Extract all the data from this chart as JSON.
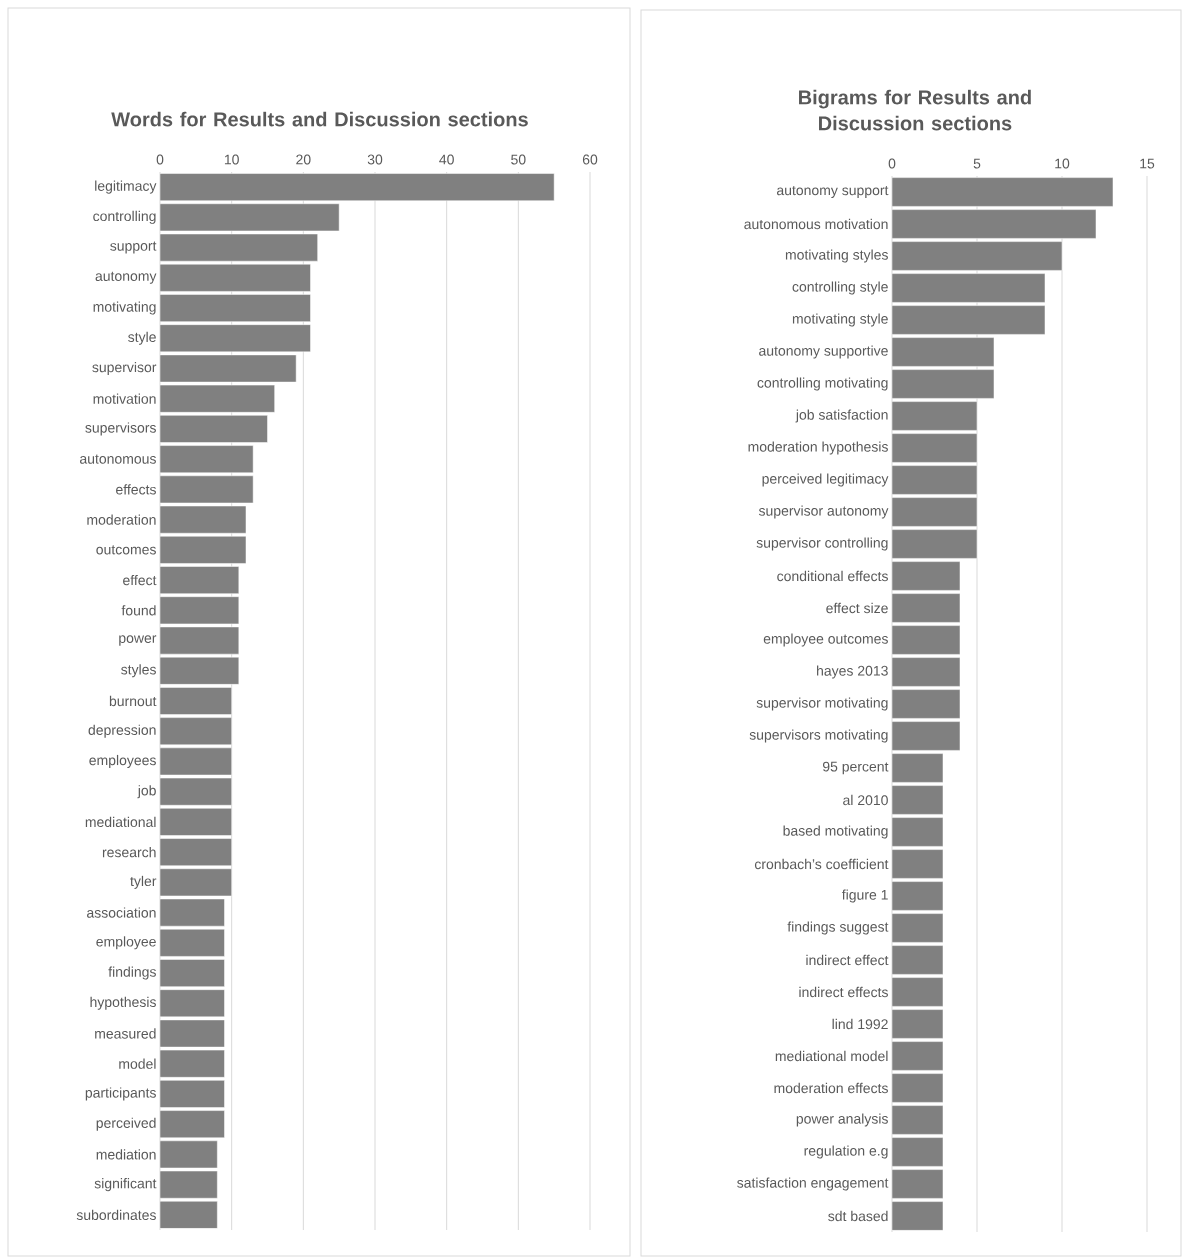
{
  "chart_data": [
    {
      "type": "bar",
      "orientation": "horizontal",
      "title": "Words for Results and Discussion sections",
      "categories": [
        "legitimacy",
        "controlling",
        "support",
        "autonomy",
        "motivating",
        "style",
        "supervisor",
        "motivation",
        "supervisors",
        "autonomous",
        "effects",
        "moderation",
        "outcomes",
        "effect",
        "found",
        "power",
        "styles",
        "burnout",
        "depression",
        "employees",
        "job",
        "mediational",
        "research",
        "tyler",
        "association",
        "employee",
        "findings",
        "hypothesis",
        "measured",
        "model",
        "participants",
        "perceived",
        "mediation",
        "significant",
        "subordinates"
      ],
      "values": [
        55,
        25,
        22,
        21,
        21,
        21,
        19,
        16,
        15,
        13,
        13,
        12,
        12,
        11,
        11,
        11,
        11,
        10,
        10,
        10,
        10,
        10,
        10,
        10,
        9,
        9,
        9,
        9,
        9,
        9,
        9,
        9,
        8,
        8,
        8
      ],
      "color": "#808080",
      "xlim": [
        0,
        60
      ],
      "xticks": [
        0,
        10,
        20,
        30,
        40,
        50,
        60
      ],
      "grid": "x"
    },
    {
      "type": "bar",
      "orientation": "horizontal",
      "title": "Bigrams for Results and Discussion sections",
      "categories": [
        "autonomy support",
        "autonomous motivation",
        "motivating styles",
        "controlling style",
        "motivating style",
        "autonomy supportive",
        "controlling motivating",
        "job satisfaction",
        "moderation hypothesis",
        "perceived legitimacy",
        "supervisor autonomy",
        "supervisor controlling",
        "conditional effects",
        "effect size",
        "employee outcomes",
        "hayes 2013",
        "supervisor motivating",
        "supervisors motivating",
        "95 percent",
        "al 2010",
        "based motivating",
        "cronbach’s coefficient",
        "figure 1",
        "findings suggest",
        "indirect effect",
        "indirect effects",
        "lind 1992",
        "mediational model",
        "moderation effects",
        "power analysis",
        "regulation e.g",
        "satisfaction engagement",
        "sdt based"
      ],
      "values": [
        13,
        12,
        10,
        9,
        9,
        6,
        6,
        5,
        5,
        5,
        5,
        5,
        4,
        4,
        4,
        4,
        4,
        4,
        3,
        3,
        3,
        3,
        3,
        3,
        3,
        3,
        3,
        3,
        3,
        3,
        3,
        3,
        3
      ],
      "color": "#808080",
      "xlim": [
        0,
        15
      ],
      "xticks": [
        0,
        5,
        10,
        15
      ],
      "grid": "x"
    }
  ]
}
